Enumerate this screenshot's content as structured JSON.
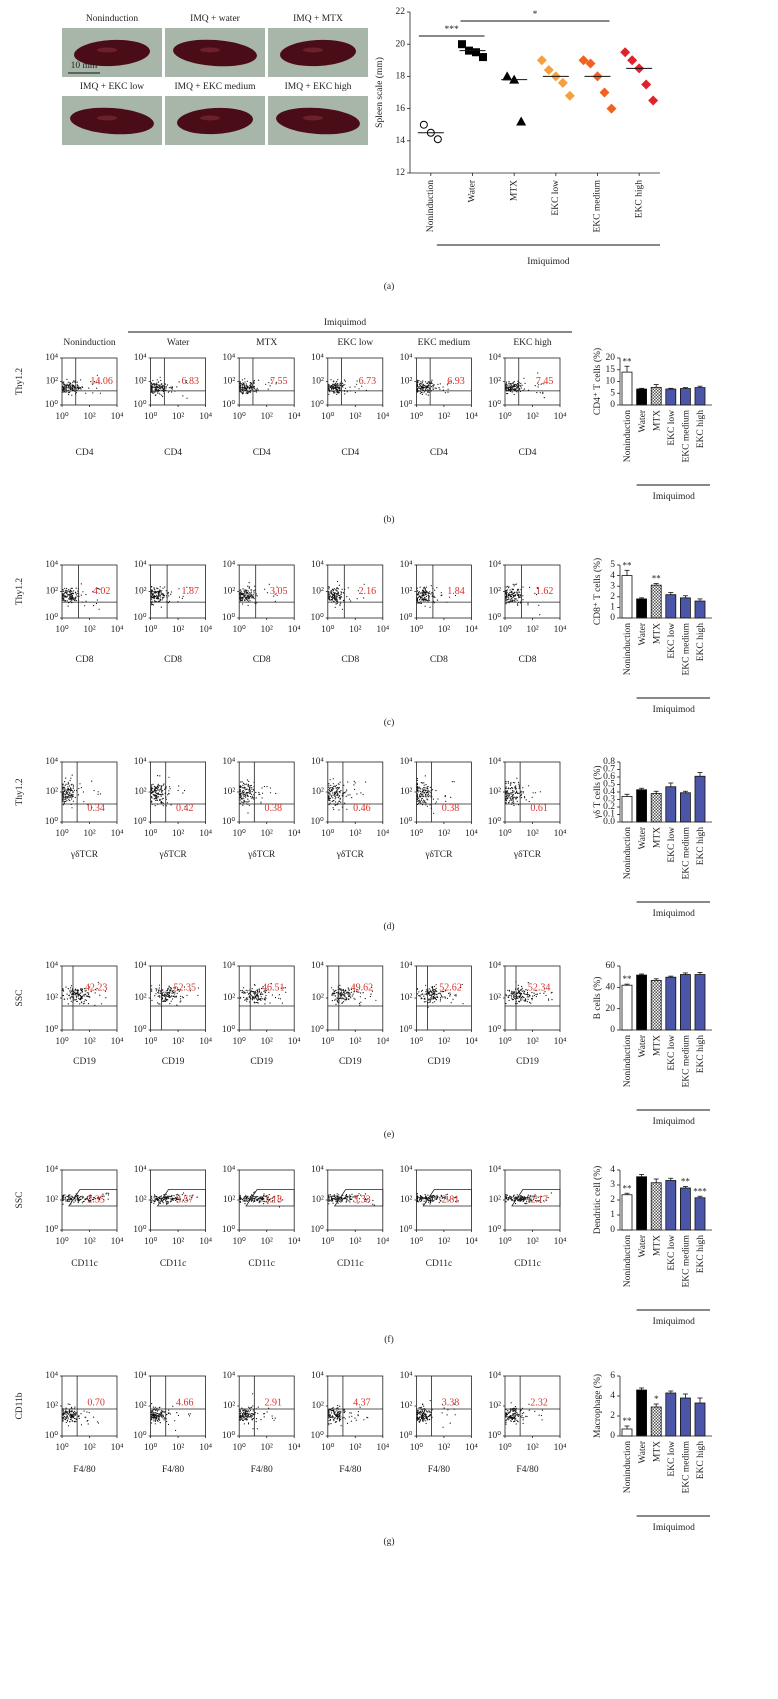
{
  "chart_data": [
    {
      "type": "photos",
      "labels": [
        "Noninduction",
        "IMQ + water",
        "IMQ + MTX",
        "IMQ + EKC low",
        "IMQ + EKC medium",
        "IMQ + EKC high"
      ],
      "scale_bar": "10 mm"
    },
    {
      "type": "scatter",
      "panel_label": "(a)",
      "y_label": "Spleen scale (mm)",
      "group_label": "Imiquimod",
      "categories": [
        "Noninduction",
        "Water",
        "MTX",
        "EKC low",
        "EKC medium",
        "EKC high"
      ],
      "points": [
        [
          15,
          14.5,
          14.1
        ],
        [
          20,
          19.6,
          19.5,
          19.2
        ],
        [
          18,
          17.8,
          15.2
        ],
        [
          19,
          18.4,
          18,
          17.6,
          16.8
        ],
        [
          19,
          18.8,
          18,
          17,
          16
        ],
        [
          19.5,
          19,
          18.5,
          17.5,
          16.5
        ]
      ],
      "means": [
        14.5,
        19.6,
        17.8,
        18,
        18,
        18.5
      ],
      "markers": [
        "open-circle",
        "square",
        "triangle",
        "diamond",
        "diamond",
        "diamond"
      ],
      "colors": [
        "#000000",
        "#000000",
        "#000000",
        "#f5a03c",
        "#f2621f",
        "#e0232a"
      ],
      "ylim": [
        12,
        22
      ],
      "yticks": [
        12,
        14,
        16,
        18,
        20,
        22
      ],
      "brackets": [
        {
          "text": "***",
          "from": 0,
          "to": 1
        },
        {
          "text": "*",
          "from": 1,
          "to": 4
        }
      ]
    },
    {
      "type": "flow",
      "panel_label": "(b)",
      "group_label": "Imiquimod",
      "categories": [
        "Noninduction",
        "Water",
        "MTX",
        "EKC low",
        "EKC medium",
        "EKC high"
      ],
      "values": [
        14.06,
        6.83,
        7.55,
        6.73,
        6.93,
        7.45
      ],
      "x_label": "CD4",
      "y_label": "Thy1.2",
      "value_color": "#d9342b",
      "log": true,
      "xlim": [
        1,
        10000
      ],
      "ylim": [
        1,
        10000
      ],
      "xticks": [
        {
          "value": 1,
          "label": "10⁰"
        },
        {
          "value": 100,
          "label": "10²"
        },
        {
          "value": 10000,
          "label": "10⁴"
        }
      ],
      "yticks": [
        {
          "value": 1,
          "label": "10⁰"
        },
        {
          "value": 100,
          "label": "10²"
        },
        {
          "value": 10000,
          "label": "10⁴"
        }
      ]
    },
    {
      "type": "bar",
      "y_label": "CD4⁺ T cells (%)",
      "group_label": "Imiquimod",
      "categories": [
        "Noninduction",
        "Water",
        "MTX",
        "EKC low",
        "EKC medium",
        "EKC high"
      ],
      "values": [
        14,
        6.8,
        7.5,
        6.8,
        7,
        7.4
      ],
      "errors": [
        2.5,
        0.3,
        1.2,
        0.3,
        0.4,
        0.6
      ],
      "annotations": [
        "**",
        null,
        null,
        null,
        null,
        null
      ],
      "colors": [
        "#ffffff",
        "#000000",
        "hatch",
        "#4b56a8",
        "#4b56a8",
        "#4b56a8"
      ],
      "ylim": [
        0,
        20
      ],
      "yticks": [
        0,
        5,
        10,
        15,
        20
      ]
    },
    {
      "type": "flow",
      "panel_label": "(c)",
      "values": [
        4.02,
        1.87,
        3.05,
        2.16,
        1.84,
        1.62
      ],
      "x_label": "CD8",
      "y_label": "Thy1.2",
      "value_color": "#d9342b",
      "log": true,
      "xlim": [
        1,
        10000
      ],
      "ylim": [
        1,
        10000
      ],
      "xticks": [
        {
          "value": 1,
          "label": "10⁰"
        },
        {
          "value": 100,
          "label": "10²"
        },
        {
          "value": 10000,
          "label": "10⁴"
        }
      ],
      "yticks": [
        {
          "value": 1,
          "label": "10⁰"
        },
        {
          "value": 100,
          "label": "10²"
        },
        {
          "value": 10000,
          "label": "10⁴"
        }
      ]
    },
    {
      "type": "bar",
      "y_label": "CD8⁺ T cells (%)",
      "group_label": "Imiquimod",
      "categories": [
        "Noninduction",
        "Water",
        "MTX",
        "EKC low",
        "EKC medium",
        "EKC high"
      ],
      "values": [
        4,
        1.8,
        3.1,
        2.2,
        1.9,
        1.6
      ],
      "errors": [
        0.5,
        0.1,
        0.15,
        0.2,
        0.2,
        0.2
      ],
      "annotations": [
        "**",
        null,
        "**",
        null,
        null,
        null
      ],
      "colors": [
        "#ffffff",
        "#000000",
        "hatch",
        "#4b56a8",
        "#4b56a8",
        "#4b56a8"
      ],
      "ylim": [
        0,
        5
      ],
      "yticks": [
        0,
        1,
        2,
        3,
        4,
        5
      ]
    },
    {
      "type": "flow",
      "panel_label": "(d)",
      "values": [
        0.34,
        0.42,
        0.38,
        0.46,
        0.38,
        0.61
      ],
      "x_label": "γδTCR",
      "y_label": "Thy1.2",
      "value_color": "#d9342b",
      "log": true,
      "xlim": [
        1,
        10000
      ],
      "ylim": [
        1,
        10000
      ],
      "xticks": [
        {
          "value": 1,
          "label": "10⁰"
        },
        {
          "value": 100,
          "label": "10²"
        },
        {
          "value": 10000,
          "label": "10⁴"
        }
      ],
      "yticks": [
        {
          "value": 1,
          "label": "10⁰"
        },
        {
          "value": 100,
          "label": "10²"
        },
        {
          "value": 10000,
          "label": "10⁴"
        }
      ]
    },
    {
      "type": "bar",
      "y_label": "γδ T cells (%)",
      "group_label": "Imiquimod",
      "categories": [
        "Noninduction",
        "Water",
        "MTX",
        "EKC low",
        "EKC medium",
        "EKC high"
      ],
      "values": [
        0.34,
        0.43,
        0.38,
        0.47,
        0.39,
        0.61
      ],
      "errors": [
        0.03,
        0.02,
        0.03,
        0.05,
        0.02,
        0.05
      ],
      "annotations": [
        null,
        null,
        null,
        null,
        null,
        null
      ],
      "colors": [
        "#ffffff",
        "#000000",
        "hatch",
        "#4b56a8",
        "#4b56a8",
        "#4b56a8"
      ],
      "ylim": [
        0,
        0.8
      ],
      "yticks": [
        {
          "value": 0,
          "label": "0.0"
        },
        0.1,
        0.2,
        0.3,
        0.4,
        0.5,
        0.6,
        0.7,
        0.8
      ]
    },
    {
      "type": "flow",
      "panel_label": "(e)",
      "values": [
        42.23,
        52.35,
        46.51,
        49.62,
        52.62,
        52.34
      ],
      "x_label": "CD19",
      "y_label": "SSC",
      "value_color": "#d9342b",
      "log": true,
      "xlim": [
        1,
        10000
      ],
      "ylim": [
        1,
        10000
      ],
      "xticks": [
        {
          "value": 1,
          "label": "10⁰"
        },
        {
          "value": 100,
          "label": "10²"
        },
        {
          "value": 10000,
          "label": "10⁴"
        }
      ],
      "yticks": [
        {
          "value": 1,
          "label": "10⁰"
        },
        {
          "value": 100,
          "label": "10²"
        },
        {
          "value": 10000,
          "label": "10⁴"
        }
      ]
    },
    {
      "type": "bar",
      "y_label": "B cells (%)",
      "group_label": "Imiquimod",
      "categories": [
        "Noninduction",
        "Water",
        "MTX",
        "EKC low",
        "EKC medium",
        "EKC high"
      ],
      "values": [
        42,
        51.5,
        46.5,
        49.5,
        52,
        52
      ],
      "errors": [
        1,
        1,
        1.5,
        1,
        1.5,
        2
      ],
      "annotations": [
        "**",
        null,
        null,
        null,
        null,
        null
      ],
      "colors": [
        "#ffffff",
        "#000000",
        "hatch",
        "#4b56a8",
        "#4b56a8",
        "#4b56a8"
      ],
      "ylim": [
        0,
        60
      ],
      "yticks": [
        0,
        20,
        40,
        60
      ]
    },
    {
      "type": "flow",
      "panel_label": "(f)",
      "values": [
        2.35,
        3.57,
        3.18,
        3.33,
        2.81,
        2.17
      ],
      "x_label": "CD11c",
      "y_label": "SSC",
      "value_color": "#d9342b",
      "log": true,
      "xlim": [
        1,
        10000
      ],
      "ylim": [
        1,
        10000
      ],
      "xticks": [
        {
          "value": 1,
          "label": "10⁰"
        },
        {
          "value": 100,
          "label": "10²"
        },
        {
          "value": 10000,
          "label": "10⁴"
        }
      ],
      "yticks": [
        {
          "value": 1,
          "label": "10⁰"
        },
        {
          "value": 100,
          "label": "10²"
        },
        {
          "value": 10000,
          "label": "10⁴"
        }
      ]
    },
    {
      "type": "bar",
      "y_label": "Dendritic cell (%)",
      "group_label": "Imiquimod",
      "categories": [
        "Noninduction",
        "Water",
        "MTX",
        "EKC low",
        "EKC medium",
        "EKC high"
      ],
      "values": [
        2.35,
        3.55,
        3.15,
        3.3,
        2.8,
        2.15
      ],
      "errors": [
        0.1,
        0.15,
        0.25,
        0.15,
        0.1,
        0.1
      ],
      "annotations": [
        "**",
        null,
        null,
        null,
        "**",
        "***"
      ],
      "colors": [
        "#ffffff",
        "#000000",
        "hatch",
        "#4b56a8",
        "#4b56a8",
        "#4b56a8"
      ],
      "ylim": [
        0,
        4
      ],
      "yticks": [
        0,
        1,
        2,
        3,
        4
      ]
    },
    {
      "type": "flow",
      "panel_label": "(g)",
      "values": [
        0.7,
        4.66,
        2.91,
        4.37,
        3.38,
        2.32
      ],
      "value_labels": [
        "0.70",
        "4.66",
        "2.91",
        "4.37",
        "3.38",
        "2.32"
      ],
      "x_label": "F4/80",
      "y_label": "CD11b",
      "value_color": "#d9342b",
      "log": true,
      "xlim": [
        1,
        10000
      ],
      "ylim": [
        1,
        10000
      ],
      "xticks": [
        {
          "value": 1,
          "label": "10⁰"
        },
        {
          "value": 100,
          "label": "10²"
        },
        {
          "value": 10000,
          "label": "10⁴"
        }
      ],
      "yticks": [
        {
          "value": 1,
          "label": "10⁰"
        },
        {
          "value": 100,
          "label": "10²"
        },
        {
          "value": 10000,
          "label": "10⁴"
        }
      ]
    },
    {
      "type": "bar",
      "y_label": "Macrophage (%)",
      "group_label": "Imiquimod",
      "categories": [
        "Noninduction",
        "Water",
        "MTX",
        "EKC low",
        "EKC medium",
        "EKC high"
      ],
      "values": [
        0.7,
        4.6,
        2.9,
        4.3,
        3.8,
        3.3
      ],
      "errors": [
        0.3,
        0.2,
        0.3,
        0.2,
        0.4,
        0.5
      ],
      "annotations": [
        "**",
        null,
        "*",
        null,
        null,
        null
      ],
      "colors": [
        "#ffffff",
        "#000000",
        "hatch",
        "#4b56a8",
        "#4b56a8",
        "#4b56a8"
      ],
      "ylim": [
        0,
        6
      ],
      "yticks": [
        0,
        2,
        4,
        6
      ]
    }
  ]
}
